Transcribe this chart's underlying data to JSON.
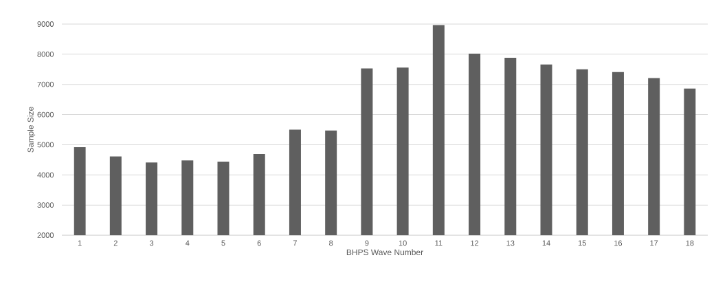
{
  "chart_data": {
    "type": "bar",
    "xlabel": "BHPS Wave Number",
    "ylabel": "Sample Size",
    "categories": [
      "1",
      "2",
      "3",
      "4",
      "5",
      "6",
      "7",
      "8",
      "9",
      "10",
      "11",
      "12",
      "13",
      "14",
      "15",
      "16",
      "17",
      "18"
    ],
    "values": [
      4920,
      4610,
      4410,
      4480,
      4440,
      4690,
      5500,
      5470,
      7530,
      7560,
      8970,
      8020,
      7880,
      7660,
      7500,
      7410,
      7210,
      6860
    ],
    "color": "#5f5f5f",
    "ylim": [
      2000,
      9000
    ],
    "yticks": [
      2000,
      3000,
      4000,
      5000,
      6000,
      7000,
      8000,
      9000
    ],
    "grid": "y"
  }
}
